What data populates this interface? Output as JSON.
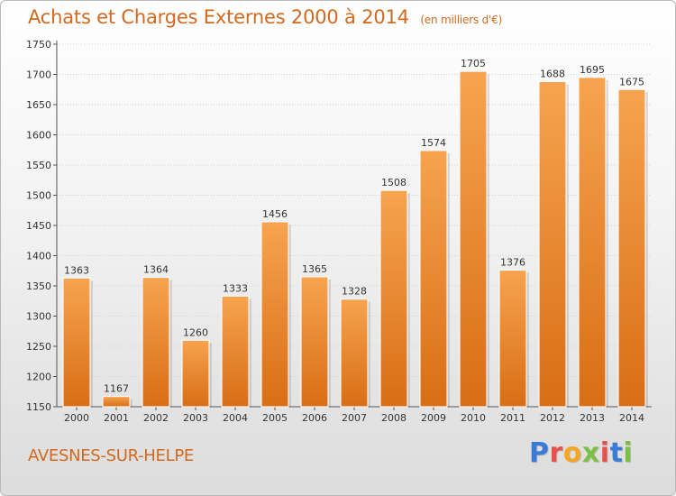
{
  "header": {
    "title": "Achats et Charges Externes 2000 à 2014",
    "subtitle": "(en milliers d'€)"
  },
  "footer": {
    "city": "AVESNES-SUR-HELPE",
    "brand_letters": [
      "P",
      "r",
      "o",
      "x",
      "i",
      "t",
      "i"
    ],
    "brand_colors": [
      "#3a7bd5",
      "#e8504a",
      "#f5a623",
      "#7bc043",
      "#e8504a",
      "#3a7bd5",
      "#7bc043"
    ]
  },
  "colors": {
    "bar_top": "#f7a34f",
    "bar_bottom": "#d86e15",
    "text_accent": "#d2691e"
  },
  "chart_data": {
    "type": "bar",
    "categories": [
      "2000",
      "2001",
      "2002",
      "2003",
      "2004",
      "2005",
      "2006",
      "2007",
      "2008",
      "2009",
      "2010",
      "2011",
      "2012",
      "2013",
      "2014"
    ],
    "values": [
      1363,
      1167,
      1364,
      1260,
      1333,
      1456,
      1365,
      1328,
      1508,
      1574,
      1705,
      1376,
      1688,
      1695,
      1675
    ],
    "yticks": [
      "1150",
      "1200",
      "1250",
      "1300",
      "1350",
      "1400",
      "1450",
      "1500",
      "1550",
      "1600",
      "1650",
      "1700",
      "1750"
    ],
    "ylim": [
      1150,
      1750
    ],
    "grid": true,
    "title": "Achats et Charges Externes 2000 à 2014",
    "xlabel": "",
    "ylabel": ""
  }
}
